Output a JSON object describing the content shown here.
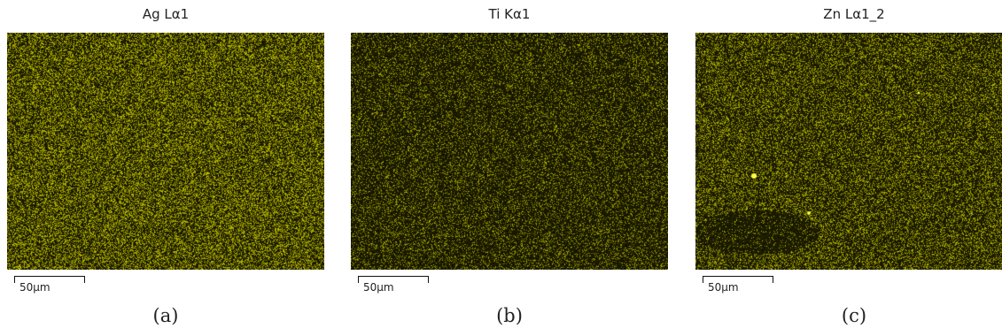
{
  "panels": [
    {
      "title": "Ag Lα1",
      "scale_label": "50µm",
      "caption": "(a)",
      "map_color": "#c8c800"
    },
    {
      "title": "Ti Kα1",
      "scale_label": "50µm",
      "caption": "(b)",
      "map_color": "#b4b400"
    },
    {
      "title": "Zn Lα1_2",
      "scale_label": "50µm",
      "caption": "(c)",
      "map_color": "#c0c000"
    }
  ]
}
